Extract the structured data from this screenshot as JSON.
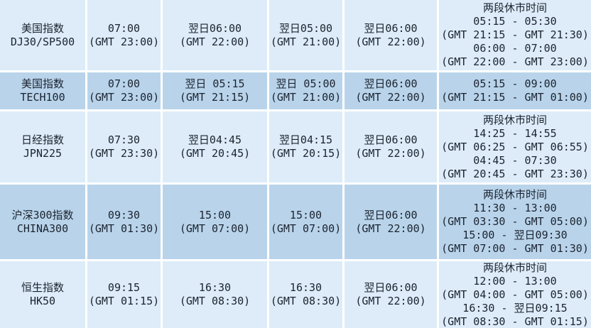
{
  "colors": {
    "row_light": "#ddecf8",
    "row_dark": "#b9d4ea",
    "grid_line": "#ffffff",
    "text": "#1b2330"
  },
  "table": {
    "rows": [
      {
        "id": "us-dj30-sp500",
        "cells": [
          {
            "lines": [
              "美国指数",
              "DJ30/SP500"
            ]
          },
          {
            "lines": [
              "07:00",
              "(GMT 23:00)"
            ]
          },
          {
            "lines": [
              "翌日06:00",
              "(GMT 22:00)"
            ]
          },
          {
            "lines": [
              "翌日05:00",
              "(GMT 21:00)"
            ]
          },
          {
            "lines": [
              "翌日06:00",
              "(GMT 22:00)"
            ]
          },
          {
            "lines": [
              "两段休市时间",
              "05:15 - 05:30",
              "(GMT 21:15 - GMT 21:30)",
              "06:00 - 07:00",
              "(GMT 22:00 - GMT 23:00)"
            ]
          }
        ]
      },
      {
        "id": "us-tech100",
        "cells": [
          {
            "lines": [
              "美国指数",
              "TECH100"
            ]
          },
          {
            "lines": [
              "07:00",
              "(GMT 23:00)"
            ]
          },
          {
            "lines": [
              "翌日 05:15",
              "(GMT 21:15)"
            ]
          },
          {
            "lines": [
              "翌日 05:00",
              "(GMT 21:00)"
            ]
          },
          {
            "lines": [
              "翌日06:00",
              "(GMT 22:00)"
            ]
          },
          {
            "lines": [
              "05:15 - 09:00",
              "(GMT 21:15 - GMT 01:00)"
            ]
          }
        ]
      },
      {
        "id": "nikkei-jpn225",
        "cells": [
          {
            "lines": [
              "日经指数",
              "JPN225"
            ]
          },
          {
            "lines": [
              "07:30",
              "(GMT 23:30)"
            ]
          },
          {
            "lines": [
              "翌日04:45",
              "(GMT 20:45)"
            ]
          },
          {
            "lines": [
              "翌日04:15",
              "(GMT 20:15)"
            ]
          },
          {
            "lines": [
              "翌日06:00",
              "(GMT 22:00)"
            ]
          },
          {
            "lines": [
              "两段休市时间",
              "14:25 - 14:55",
              "(GMT 06:25 - GMT 06:55)",
              "04:45 - 07:30",
              "(GMT 20:45 - GMT 23:30)"
            ]
          }
        ]
      },
      {
        "id": "csi-china300",
        "cells": [
          {
            "lines": [
              "沪深300指数",
              "CHINA300"
            ]
          },
          {
            "lines": [
              "09:30",
              "(GMT 01:30)"
            ]
          },
          {
            "lines": [
              "15:00",
              "(GMT 07:00)"
            ]
          },
          {
            "lines": [
              "15:00",
              "(GMT 07:00)"
            ]
          },
          {
            "lines": [
              "翌日06:00",
              "(GMT 22:00)"
            ]
          },
          {
            "lines": [
              "两段休市时间",
              "11:30 - 13:00",
              "(GMT 03:30 - GMT 05:00)",
              "15:00 - 翌日09:30",
              "(GMT 07:00 - GMT 01:30)"
            ]
          }
        ]
      },
      {
        "id": "hangseng-hk50",
        "cells": [
          {
            "lines": [
              "恒生指数",
              "HK50"
            ]
          },
          {
            "lines": [
              "09:15",
              "(GMT 01:15)"
            ]
          },
          {
            "lines": [
              "16:30",
              "(GMT 08:30)"
            ]
          },
          {
            "lines": [
              "16:30",
              "(GMT 08:30)"
            ]
          },
          {
            "lines": [
              "翌日06:00",
              "(GMT 22:00)"
            ]
          },
          {
            "lines": [
              "两段休市时间",
              "12:00 - 13:00",
              "(GMT 04:00 - GMT 05:00)",
              "16:30 - 翌日09:15",
              "(GMT 08:30 - GMT 01:15)"
            ]
          }
        ]
      }
    ]
  }
}
